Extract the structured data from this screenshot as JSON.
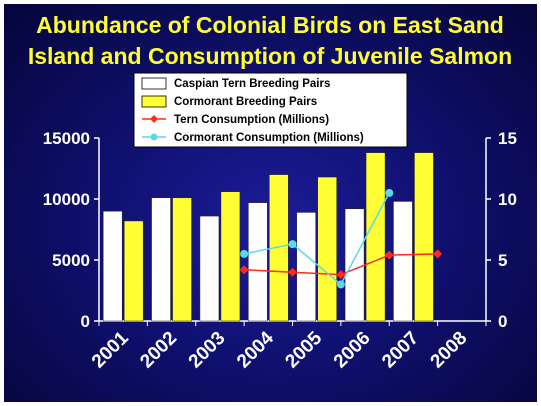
{
  "chart_data": {
    "type": "bar",
    "title": [
      "Abundance of Colonial Birds on East Sand",
      "Island and Consumption of Juvenile Salmon"
    ],
    "categories": [
      "2001",
      "2002",
      "2003",
      "2004",
      "2005",
      "2006",
      "2007",
      "2008"
    ],
    "left_axis": {
      "ylim": [
        0,
        15000
      ],
      "ticks": [
        "0",
        "5000",
        "10000",
        "15000"
      ]
    },
    "right_axis": {
      "ylim": [
        0,
        15
      ],
      "ticks": [
        "0",
        "5",
        "10",
        "15"
      ]
    },
    "bar_series": [
      {
        "name": "Caspian Tern Breeding Pairs",
        "color": "#ffffff",
        "values": [
          9000,
          10100,
          8600,
          9700,
          8900,
          9200,
          9800,
          null
        ]
      },
      {
        "name": "Cormorant Breeding Pairs",
        "color": "#ffff33",
        "values": [
          8200,
          10100,
          10600,
          12000,
          11800,
          13800,
          13800,
          null
        ]
      }
    ],
    "line_series": [
      {
        "name": "Tern Consumption (Millions)",
        "color": "#ff2a1a",
        "marker": "diamond",
        "points": [
          {
            "x": 2003.5,
            "y": 4.2
          },
          {
            "x": 2004.5,
            "y": 4.0
          },
          {
            "x": 2005.5,
            "y": 3.8
          },
          {
            "x": 2006.5,
            "y": 5.4
          },
          {
            "x": 2007.5,
            "y": 5.5
          }
        ]
      },
      {
        "name": "Cormorant Consumption (Millions)",
        "color": "#5ad8e8",
        "marker": "circle",
        "points": [
          {
            "x": 2003.5,
            "y": 5.5
          },
          {
            "x": 2004.5,
            "y": 6.3
          },
          {
            "x": 2005.5,
            "y": 3.0
          },
          {
            "x": 2006.5,
            "y": 10.5
          }
        ]
      }
    ],
    "legend_position": "top-center",
    "grid": false
  }
}
